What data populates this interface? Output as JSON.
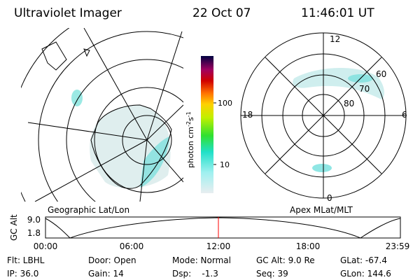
{
  "header": {
    "title": "Ultraviolet Imager",
    "date": "22 Oct 07",
    "time": "11:46:01 UT"
  },
  "colorbar": {
    "label": [
      "photon cm",
      "-2",
      "s",
      "-1"
    ],
    "ticks": [
      "100",
      "10"
    ]
  },
  "geographic_panel": {
    "caption": "Geographic Lat/Lon"
  },
  "polar_panel": {
    "caption": "Apex MLat/MLT",
    "mlt_labels": [
      "12",
      "18",
      "6",
      "0"
    ],
    "mlat_labels": [
      "60",
      "70",
      "80"
    ]
  },
  "altitude_plot": {
    "y_label": "GC Alt",
    "y_ticks": [
      "9.0",
      "1.8"
    ],
    "x_ticks": [
      "00:00",
      "06:00",
      "12:00",
      "18:00",
      "23:59"
    ]
  },
  "info": {
    "rows": [
      [
        "Flt: LBHL",
        "Door: Open",
        "Mode: Normal",
        "GC Alt: 9.0 Re",
        "GLat: -67.4"
      ],
      [
        "IP: 36.0",
        "Gain: 14",
        "Dsp:    -1.3",
        "Seq: 39",
        "GLon: 144.6"
      ]
    ]
  }
}
